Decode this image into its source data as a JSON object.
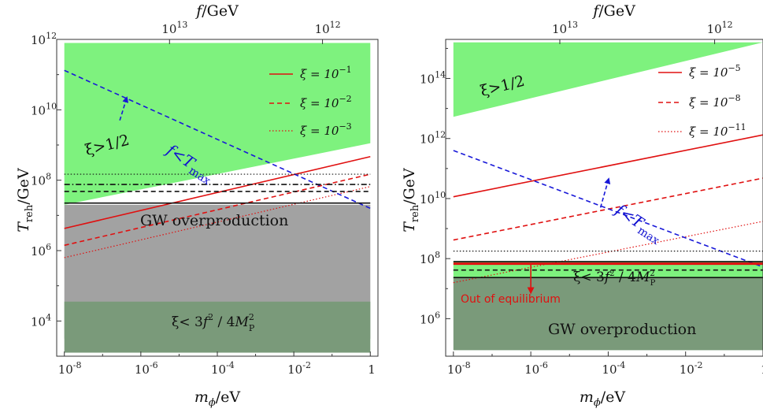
{
  "chart_data": [
    {
      "type": "line",
      "panel": "left",
      "xlabel": "m_φ/eV",
      "ylabel": "T_reh/GeV",
      "top_xlabel": "f/GeV",
      "x_scale": "log",
      "y_scale": "log",
      "xlim_log10": [
        -8.2,
        0.2
      ],
      "ylim_log10": [
        3,
        12
      ],
      "x_ticks": [
        {
          "p": -8,
          "t": "10",
          "s": "-8"
        },
        {
          "p": -6,
          "t": "10",
          "s": "-6"
        },
        {
          "p": -4,
          "t": "10",
          "s": "-4"
        },
        {
          "p": -2,
          "t": "10",
          "s": "-2"
        },
        {
          "p": 0,
          "t": "1",
          "s": ""
        }
      ],
      "y_ticks": [
        {
          "p": 4,
          "t": "10",
          "s": "4"
        },
        {
          "p": 6,
          "t": "10",
          "s": "6"
        },
        {
          "p": 8,
          "t": "10",
          "s": "8"
        },
        {
          "p": 10,
          "t": "10",
          "s": "10"
        },
        {
          "p": 12,
          "t": "10",
          "s": "12"
        }
      ],
      "top_ticks": [
        {
          "p": -5.25,
          "t": "10",
          "s": "13"
        },
        {
          "p": -1.25,
          "t": "10",
          "s": "12"
        }
      ],
      "regions": [
        {
          "name": "xi-half",
          "color": "#7ef27e",
          "polygon_log10": [
            [
              -8,
              11.9
            ],
            [
              0,
              11.9
            ],
            [
              0,
              9.05
            ],
            [
              -8,
              7.3
            ]
          ]
        },
        {
          "name": "gw-overproduction",
          "color": "#a2a2a2",
          "polygon_log10": [
            [
              -8,
              7.3
            ],
            [
              0,
              7.3
            ],
            [
              0,
              3.5
            ],
            [
              -8,
              3.5
            ]
          ]
        },
        {
          "name": "xi-small",
          "color": "#7a9a7a",
          "polygon_log10": [
            [
              -8,
              4.55
            ],
            [
              0,
              4.55
            ],
            [
              0,
              3.1
            ],
            [
              -8,
              3.1
            ]
          ]
        }
      ],
      "lines": [
        {
          "name": "xi-1e-1",
          "color": "#e01010",
          "style": "solid",
          "pts_log10": [
            [
              -8,
              6.63
            ],
            [
              0,
              8.67
            ]
          ]
        },
        {
          "name": "xi-1e-2",
          "color": "#e01010",
          "style": "dashed",
          "pts_log10": [
            [
              -8,
              6.15
            ],
            [
              0,
              8.17
            ]
          ]
        },
        {
          "name": "xi-1e-3",
          "color": "#e01010",
          "style": "dotted",
          "pts_log10": [
            [
              -8,
              5.8
            ],
            [
              0,
              7.82
            ]
          ]
        },
        {
          "name": "f-less-Tmax",
          "color": "#1818d8",
          "style": "dashed",
          "pts_log10": [
            [
              -8,
              11.12
            ],
            [
              0,
              7.2
            ]
          ]
        },
        {
          "name": "black-solid",
          "color": "#111111",
          "style": "solid",
          "pts_log10": [
            [
              -8,
              7.35
            ],
            [
              0,
              7.35
            ]
          ]
        },
        {
          "name": "black-dashed",
          "color": "#111111",
          "style": "dashed",
          "pts_log10": [
            [
              -8,
              7.68
            ],
            [
              0,
              7.68
            ]
          ]
        },
        {
          "name": "black-dashdot",
          "color": "#111111",
          "style": "dashdot",
          "pts_log10": [
            [
              -8,
              7.88
            ],
            [
              0,
              7.88
            ]
          ]
        },
        {
          "name": "black-dotted",
          "color": "#111111",
          "style": "dotted",
          "pts_log10": [
            [
              -8,
              8.17
            ],
            [
              0,
              8.17
            ]
          ]
        }
      ],
      "arrows": [
        {
          "color": "#1818d8",
          "from_log10": [
            -6.55,
            9.7
          ],
          "to_log10": [
            -6.38,
            10.3
          ]
        }
      ],
      "labels": {
        "xi_half": "ξ>1/2",
        "gw": "GW overproduction",
        "xi_small_a": "ξ< 3",
        "xi_small_f": "f",
        "xi_small_b": " / 4",
        "xi_small_m": "M",
        "xi_small_sub": "P",
        "xi_small_sup": "2",
        "xi_small_sup2": "2",
        "f_tmax": "f<T",
        "f_tmax_sub": "max"
      },
      "legend": [
        {
          "style": "solid",
          "text": "ξ = 10",
          "exp": "−1"
        },
        {
          "style": "dashed",
          "text": "ξ = 10",
          "exp": "−2"
        },
        {
          "style": "dotted",
          "text": "ξ = 10",
          "exp": "−3"
        }
      ]
    },
    {
      "type": "line",
      "panel": "right",
      "xlabel": "m_φ/eV",
      "ylabel": "T_reh/GeV",
      "top_xlabel": "f/GeV",
      "x_scale": "log",
      "y_scale": "log",
      "xlim_log10": [
        -8.2,
        0
      ],
      "ylim_log10": [
        4.75,
        15.3
      ],
      "x_ticks": [
        {
          "p": -8,
          "t": "10",
          "s": "-8"
        },
        {
          "p": -6,
          "t": "10",
          "s": "-6"
        },
        {
          "p": -4,
          "t": "10",
          "s": "-4"
        },
        {
          "p": -2,
          "t": "10",
          "s": "-2"
        },
        {
          "p": 0,
          "t": "1",
          "s": ""
        }
      ],
      "y_ticks": [
        {
          "p": 6,
          "t": "10",
          "s": "6"
        },
        {
          "p": 8,
          "t": "10",
          "s": "8"
        },
        {
          "p": 10,
          "t": "10",
          "s": "10"
        },
        {
          "p": 12,
          "t": "10",
          "s": "12"
        },
        {
          "p": 14,
          "t": "10",
          "s": "14"
        }
      ],
      "top_ticks": [
        {
          "p": -5.25,
          "t": "10",
          "s": "13"
        },
        {
          "p": -1.25,
          "t": "10",
          "s": "12"
        }
      ],
      "regions": [
        {
          "name": "xi-half",
          "color": "#7ef27e",
          "polygon_log10": [
            [
              -8,
              15.2
            ],
            [
              0,
              15.2
            ],
            [
              0,
              15.2
            ],
            [
              -8,
              12.72
            ]
          ]
        },
        {
          "name": "green-band",
          "color": "#7ef27e",
          "polygon_log10": [
            [
              -8,
              7.9
            ],
            [
              0,
              7.9
            ],
            [
              0,
              7.37
            ],
            [
              -8,
              7.37
            ]
          ]
        },
        {
          "name": "gw-overproduction",
          "color": "#7a9a7a",
          "polygon_log10": [
            [
              -8,
              7.37
            ],
            [
              0,
              7.37
            ],
            [
              0,
              4.95
            ],
            [
              -8,
              4.95
            ]
          ]
        }
      ],
      "lines": [
        {
          "name": "xi-1e-5",
          "color": "#e01010",
          "style": "solid",
          "pts_log10": [
            [
              -8,
              10.06
            ],
            [
              0,
              12.12
            ]
          ]
        },
        {
          "name": "xi-1e-8",
          "color": "#e01010",
          "style": "dashed",
          "pts_log10": [
            [
              -8,
              8.62
            ],
            [
              0,
              10.68
            ]
          ]
        },
        {
          "name": "xi-1e-11",
          "color": "#e01010",
          "style": "dotted",
          "pts_log10": [
            [
              -8,
              7.2
            ],
            [
              0,
              9.24
            ]
          ]
        },
        {
          "name": "f-less-Tmax",
          "color": "#1818d8",
          "style": "dashed",
          "pts_log10": [
            [
              -8,
              11.6
            ],
            [
              0,
              7.72
            ]
          ]
        },
        {
          "name": "red-thick",
          "color": "#e01010",
          "style": "solid",
          "pts_log10": [
            [
              -8,
              7.83
            ],
            [
              0,
              7.83
            ]
          ]
        },
        {
          "name": "black-solid-top",
          "color": "#111111",
          "style": "solid",
          "pts_log10": [
            [
              -8,
              7.9
            ],
            [
              0,
              7.9
            ]
          ]
        },
        {
          "name": "black-dotted",
          "color": "#111111",
          "style": "dotted",
          "pts_log10": [
            [
              -8,
              8.25
            ],
            [
              0,
              8.25
            ]
          ]
        },
        {
          "name": "black-dashed",
          "color": "#111111",
          "style": "dashed",
          "pts_log10": [
            [
              -8,
              7.62
            ],
            [
              0,
              7.62
            ]
          ]
        },
        {
          "name": "black-solid",
          "color": "#111111",
          "style": "solid",
          "pts_log10": [
            [
              -8,
              7.37
            ],
            [
              0,
              7.37
            ]
          ]
        }
      ],
      "arrows": [
        {
          "color": "#1818d8",
          "from_log10": [
            -4.2,
            9.7
          ],
          "to_log10": [
            -4.0,
            10.6
          ]
        },
        {
          "color": "#e01010",
          "from_log10": [
            -6.0,
            7.85
          ],
          "to_log10": [
            -6.0,
            6.93
          ]
        }
      ],
      "labels": {
        "xi_half": "ξ>1/2",
        "gw": "GW overproduction",
        "ooe": "Out of equilibrium",
        "xi_small_a": "ξ< 3",
        "xi_small_f": "f",
        "xi_small_b": " / 4",
        "xi_small_m": "M",
        "xi_small_sub": "P",
        "xi_small_sup": "2",
        "xi_small_sup2": "2",
        "f_tmax": "f<T",
        "f_tmax_sub": "max"
      },
      "legend": [
        {
          "style": "solid",
          "text": "ξ = 10",
          "exp": "−5"
        },
        {
          "style": "dashed",
          "text": "ξ = 10",
          "exp": "−8"
        },
        {
          "style": "dotted",
          "text": "ξ = 10",
          "exp": "−11"
        }
      ]
    }
  ]
}
